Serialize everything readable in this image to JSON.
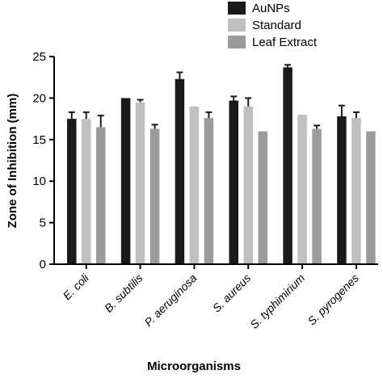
{
  "chart_data": {
    "type": "bar",
    "categories": [
      "E. coli",
      "B. subtilis",
      "P. aeruginosa",
      "S. aureus",
      "S. typhimirium",
      "S. pyrogenes"
    ],
    "series": [
      {
        "name": "AuNPs",
        "color": "#1a1a1a",
        "values": [
          17.5,
          20.0,
          22.3,
          19.7,
          23.7,
          17.8
        ],
        "errors": [
          0.8,
          0,
          0.8,
          0.5,
          0.3,
          1.3
        ]
      },
      {
        "name": "Standard",
        "color": "#c0c0c0",
        "values": [
          17.5,
          19.5,
          19.0,
          19.0,
          18.0,
          17.6
        ],
        "errors": [
          0.8,
          0.3,
          0,
          1.0,
          0,
          0.7
        ]
      },
      {
        "name": "Leaf Extract",
        "color": "#9b9b9b",
        "values": [
          16.5,
          16.3,
          17.6,
          16.0,
          16.3,
          16.0
        ],
        "errors": [
          1.4,
          0.5,
          0.7,
          0,
          0.4,
          0
        ]
      }
    ],
    "xlabel": "Microorganisms",
    "ylabel": "Zone of Inhibition (mm)",
    "ylim": [
      0,
      25
    ],
    "yticks": [
      "0",
      "5",
      "10",
      "15",
      "20",
      "25"
    ],
    "legend_position": "top-right",
    "grid": false
  }
}
